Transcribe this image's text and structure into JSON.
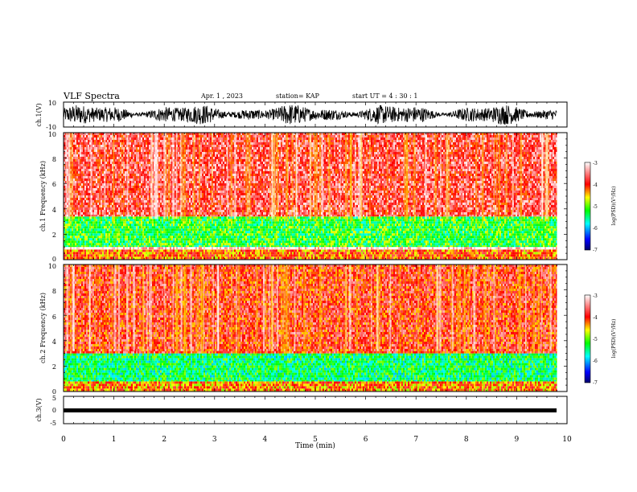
{
  "header": {
    "title": "VLF Spectra",
    "date": "Apr. 1  , 2023",
    "station": "station= KAP",
    "start": "start  UT  =   4 : 30 : 1"
  },
  "chart_data": [
    {
      "type": "line",
      "ylabel": "ch.1(V)",
      "yticks": [
        "10",
        "-10"
      ],
      "ylim": [
        -10,
        10
      ],
      "note_visible": "dense black noise trace spanning approx -8 to 8 V over 0 to 9.8 min"
    },
    {
      "type": "heatmap",
      "ylabel": "ch.1 Frequency (kHz)",
      "yticks": [
        "0",
        "2",
        "4",
        "6",
        "8",
        "10"
      ],
      "ylim": [
        0,
        10
      ],
      "xlim": [
        0,
        10
      ],
      "data_end_min": 9.8,
      "colorbar": {
        "label": "log(PSD)(V²/Hz)",
        "ticks": [
          "-3",
          "-4",
          "-5",
          "-6",
          "-7"
        ],
        "range": [
          -7,
          -3
        ]
      },
      "bands": [
        {
          "fmin": 0.0,
          "fmax": 0.8,
          "level": -4.2
        },
        {
          "fmin": 0.8,
          "fmax": 1.0,
          "level": -3.0
        },
        {
          "fmin": 1.0,
          "fmax": 3.4,
          "level": -5.2
        },
        {
          "fmin": 3.4,
          "fmax": 10.0,
          "level": -3.7
        }
      ]
    },
    {
      "type": "heatmap",
      "ylabel": "ch.2 Frequency (kHz)",
      "yticks": [
        "0",
        "2",
        "4",
        "6",
        "8",
        "10"
      ],
      "ylim": [
        0,
        10
      ],
      "xlim": [
        0,
        10
      ],
      "data_end_min": 9.8,
      "colorbar": {
        "label": "log(PSD)(V²/Hz)",
        "ticks": [
          "-3",
          "-4",
          "-5",
          "-6",
          "-7"
        ],
        "range": [
          -7,
          -3
        ]
      },
      "bands": [
        {
          "fmin": 0.0,
          "fmax": 0.8,
          "level": -4.3
        },
        {
          "fmin": 0.8,
          "fmax": 3.0,
          "level": -5.4
        },
        {
          "fmin": 3.0,
          "fmax": 10.0,
          "level": -3.9
        }
      ]
    },
    {
      "type": "line",
      "ylabel": "ch.3(V)",
      "yticks": [
        "5",
        "0",
        "-5"
      ],
      "ylim": [
        -5,
        5
      ],
      "note_visible": "thick flat black trace near -0.5 V from 0 to 9.8 min"
    }
  ],
  "xaxis": {
    "label": "Time  (min)",
    "ticks": [
      "0",
      "1",
      "2",
      "3",
      "4",
      "5",
      "6",
      "7",
      "8",
      "9",
      "10"
    ]
  },
  "colors": {
    "background": "#ffffff",
    "axis": "#000000",
    "colormap": [
      "#00006a",
      "#0000ff",
      "#00ffff",
      "#00ff00",
      "#ffff00",
      "#ff0000",
      "#ffffff"
    ]
  }
}
